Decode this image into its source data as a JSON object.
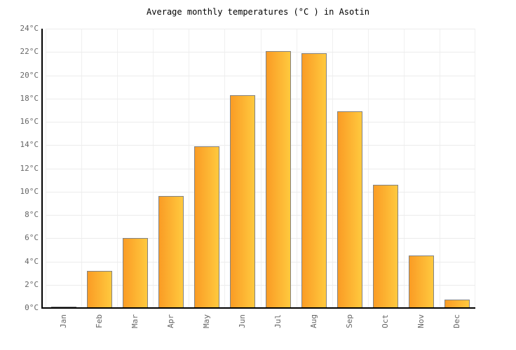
{
  "title": "Average monthly temperatures (°C ) in Asotin",
  "chart_data": {
    "type": "bar",
    "title": "Average monthly temperatures (°C ) in Asotin",
    "categories": [
      "Jan",
      "Feb",
      "Mar",
      "Apr",
      "May",
      "Jun",
      "Jul",
      "Aug",
      "Sep",
      "Oct",
      "Nov",
      "Dec"
    ],
    "values": [
      0.1,
      3.2,
      6.0,
      9.6,
      13.9,
      18.3,
      22.1,
      21.9,
      16.9,
      10.6,
      4.5,
      0.7
    ],
    "xlabel": "",
    "ylabel": "",
    "ylim": [
      0,
      24
    ],
    "ytick_step": 2,
    "y_tick_labels": [
      "0°C",
      "2°C",
      "4°C",
      "6°C",
      "8°C",
      "10°C",
      "12°C",
      "14°C",
      "16°C",
      "18°C",
      "20°C",
      "22°C",
      "24°C"
    ],
    "grid": true,
    "legend": "none",
    "colors": {
      "bar_gradient_left": "#FA9C25",
      "bar_gradient_right": "#FFC93E",
      "bar_border": "#838383",
      "axis_line": "#000000",
      "gridline": "#ececec",
      "tick_label": "#666666",
      "title_text": "#000000",
      "background": "#ffffff"
    }
  }
}
